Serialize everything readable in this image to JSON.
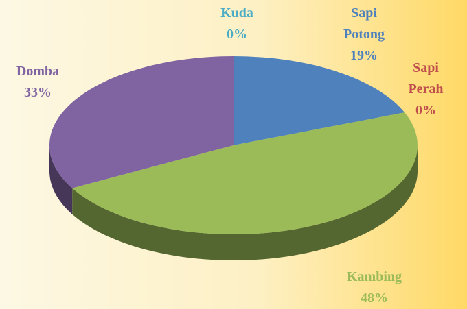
{
  "chart_data": {
    "type": "pie",
    "categories": [
      "Sapi Potong",
      "Sapi Perah",
      "Kambing",
      "Domba",
      "Kuda"
    ],
    "values": [
      19,
      0,
      48,
      33,
      0
    ],
    "value_labels": [
      "19%",
      "0%",
      "48%",
      "33%",
      "0%"
    ],
    "colors": [
      "#4f81bd",
      "#c0504d",
      "#9bbb59",
      "#8064a2",
      "#4bacc6"
    ]
  }
}
